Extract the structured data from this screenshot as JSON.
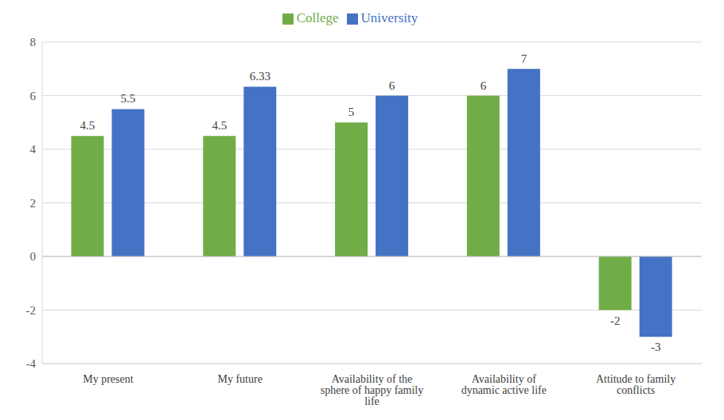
{
  "chart_data": {
    "type": "bar",
    "categories": [
      "My present",
      "My future",
      "Availability of the sphere of happy family life",
      "Availability of dynamic active life",
      "Attitude to family conflicts"
    ],
    "series": [
      {
        "name": "College",
        "color": "#70ad47",
        "values": [
          4.5,
          4.5,
          5,
          6,
          -2
        ]
      },
      {
        "name": "University",
        "color": "#4472c4",
        "values": [
          5.5,
          6.33,
          6,
          7,
          -3
        ]
      }
    ],
    "ylim": [
      -4,
      8
    ],
    "yticks": [
      -4,
      -2,
      0,
      2,
      4,
      6,
      8
    ],
    "grid": true,
    "legend": "top",
    "data_labels": true
  }
}
